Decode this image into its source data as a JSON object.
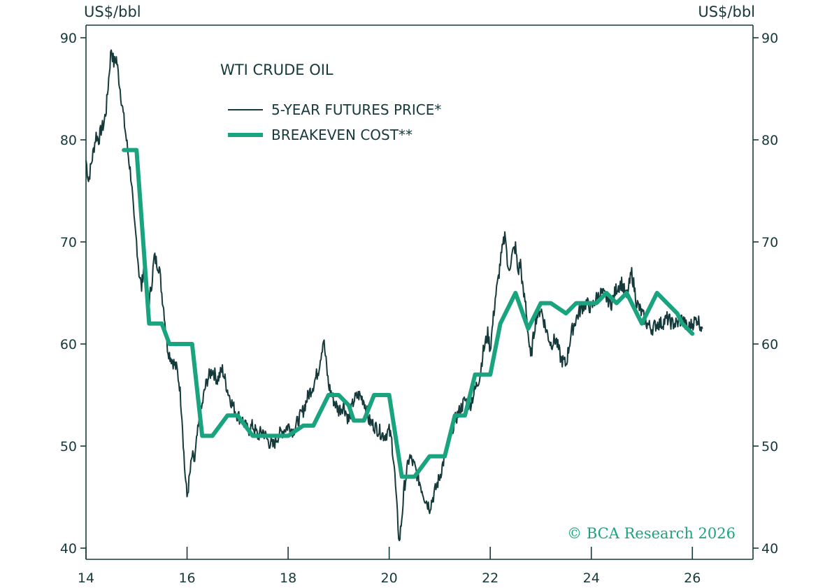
{
  "chart_data": {
    "type": "line",
    "title": "WTI CRUDE OIL",
    "ylabel_left": "US$/bbl",
    "ylabel_right": "US$/bbl",
    "xlim": [
      14,
      27.2
    ],
    "ylim": [
      40,
      91
    ],
    "x_ticks": [
      14,
      16,
      18,
      20,
      22,
      24,
      26
    ],
    "x_tick_labels": [
      "14",
      "16",
      "18",
      "20",
      "22",
      "24",
      "26"
    ],
    "y_ticks": [
      40,
      50,
      60,
      70,
      80,
      90
    ],
    "y_tick_labels": [
      "40",
      "50",
      "60",
      "70",
      "80",
      "90"
    ],
    "legend_position": "top-left",
    "credit": "© BCA Research 2026",
    "colors": {
      "axis": "#16393b",
      "futures": "#16393b",
      "breakeven": "#19a47f",
      "credit": "#19a47f"
    },
    "series": [
      {
        "name": "5-YEAR FUTURES PRICE*",
        "style": "thin",
        "x": [
          14.0,
          14.05,
          14.1,
          14.15,
          14.2,
          14.25,
          14.3,
          14.35,
          14.4,
          14.45,
          14.5,
          14.55,
          14.6,
          14.65,
          14.7,
          14.75,
          14.8,
          14.85,
          14.9,
          14.95,
          15.0,
          15.05,
          15.1,
          15.15,
          15.2,
          15.25,
          15.3,
          15.35,
          15.4,
          15.45,
          15.5,
          15.55,
          15.6,
          15.65,
          15.7,
          15.75,
          15.8,
          15.85,
          15.9,
          15.95,
          16.0,
          16.05,
          16.1,
          16.15,
          16.2,
          16.25,
          16.3,
          16.35,
          16.4,
          16.5,
          16.6,
          16.7,
          16.8,
          16.9,
          17.0,
          17.1,
          17.2,
          17.3,
          17.4,
          17.5,
          17.6,
          17.7,
          17.8,
          17.9,
          18.0,
          18.1,
          18.2,
          18.3,
          18.4,
          18.5,
          18.6,
          18.7,
          18.8,
          18.9,
          19.0,
          19.1,
          19.2,
          19.3,
          19.4,
          19.5,
          19.6,
          19.7,
          19.8,
          19.9,
          20.0,
          20.05,
          20.1,
          20.15,
          20.2,
          20.25,
          20.3,
          20.35,
          20.4,
          20.5,
          20.6,
          20.7,
          20.8,
          20.9,
          21.0,
          21.1,
          21.2,
          21.3,
          21.4,
          21.5,
          21.6,
          21.7,
          21.8,
          21.85,
          21.9,
          21.95,
          22.0,
          22.05,
          22.1,
          22.15,
          22.2,
          22.25,
          22.3,
          22.35,
          22.4,
          22.45,
          22.5,
          22.55,
          22.6,
          22.65,
          22.7,
          22.75,
          22.8,
          22.9,
          23.0,
          23.1,
          23.2,
          23.3,
          23.4,
          23.5,
          23.6,
          23.7,
          23.8,
          23.9,
          24.0,
          24.1,
          24.2,
          24.3,
          24.4,
          24.5,
          24.6,
          24.7,
          24.8,
          24.9,
          25.0,
          25.1,
          25.2,
          25.3,
          25.4,
          25.5,
          25.6,
          25.7,
          25.8,
          25.9,
          26.0,
          26.1,
          26.2
        ],
        "y": [
          78.0,
          76.0,
          77.5,
          79.0,
          80.5,
          80.0,
          81.0,
          81.5,
          83.0,
          86.0,
          89.0,
          87.5,
          88.0,
          86.0,
          84.0,
          82.0,
          80.0,
          78.0,
          76.0,
          72.0,
          70.0,
          67.0,
          65.5,
          68.0,
          66.0,
          64.0,
          66.0,
          68.5,
          68.0,
          67.5,
          65.0,
          63.0,
          60.0,
          59.0,
          58.5,
          58.0,
          57.5,
          56.0,
          53.0,
          48.0,
          45.0,
          47.0,
          49.0,
          48.5,
          51.0,
          52.5,
          54.0,
          55.5,
          56.5,
          57.5,
          56.5,
          57.5,
          55.5,
          54.0,
          53.0,
          52.5,
          51.5,
          52.0,
          51.0,
          51.5,
          50.5,
          50.0,
          51.0,
          51.5,
          52.0,
          51.5,
          52.5,
          53.5,
          55.0,
          56.0,
          57.5,
          60.5,
          56.0,
          54.5,
          53.5,
          54.0,
          52.5,
          54.5,
          55.0,
          54.5,
          52.5,
          52.0,
          51.5,
          51.0,
          51.5,
          50.5,
          48.0,
          44.0,
          40.5,
          43.0,
          46.0,
          47.5,
          49.0,
          48.0,
          46.5,
          45.0,
          44.0,
          45.5,
          47.0,
          49.0,
          51.0,
          52.5,
          53.5,
          54.5,
          54.0,
          55.5,
          57.0,
          59.0,
          60.0,
          61.0,
          59.5,
          62.0,
          64.5,
          66.0,
          68.0,
          69.5,
          71.0,
          67.0,
          68.0,
          69.0,
          69.5,
          67.0,
          68.0,
          65.0,
          64.0,
          61.0,
          58.5,
          62.5,
          63.5,
          61.5,
          60.0,
          60.5,
          58.5,
          58.0,
          61.0,
          62.5,
          63.5,
          64.0,
          63.5,
          64.5,
          65.0,
          64.5,
          64.0,
          65.5,
          66.0,
          64.5,
          67.0,
          64.0,
          63.0,
          62.0,
          61.5,
          62.0,
          62.0,
          62.5,
          62.0,
          62.0,
          62.5,
          61.5,
          62.0,
          62.5,
          61.5
        ]
      },
      {
        "name": "BREAKEVEN COST**",
        "style": "thick",
        "x": [
          14.75,
          15.0,
          15.25,
          15.3,
          15.5,
          15.65,
          16.1,
          16.3,
          16.5,
          16.8,
          17.0,
          17.3,
          17.5,
          17.8,
          18.0,
          18.3,
          18.5,
          18.8,
          19.0,
          19.2,
          19.3,
          19.5,
          19.7,
          19.8,
          20.0,
          20.25,
          20.3,
          20.4,
          20.5,
          20.8,
          21.0,
          21.1,
          21.3,
          21.5,
          21.7,
          21.9,
          22.0,
          22.2,
          22.5,
          22.75,
          23.0,
          23.1,
          23.2,
          23.5,
          23.7,
          23.9,
          24.1,
          24.3,
          24.5,
          24.7,
          24.8,
          25.0,
          25.1,
          25.3,
          25.5,
          25.7,
          25.8,
          26.0
        ],
        "y": [
          79,
          79,
          62,
          62,
          62,
          60,
          60,
          51,
          51,
          53,
          53,
          51,
          51,
          51,
          51,
          52,
          52,
          55,
          55,
          54,
          52.5,
          52.5,
          55,
          55,
          55,
          47,
          47,
          47,
          47,
          49,
          49,
          49,
          53,
          53,
          57,
          57,
          57,
          62,
          65,
          61.5,
          64,
          64,
          64,
          63,
          64,
          64,
          64,
          65,
          64,
          65,
          64,
          62,
          63,
          65,
          64,
          63,
          62,
          61
        ]
      }
    ]
  }
}
